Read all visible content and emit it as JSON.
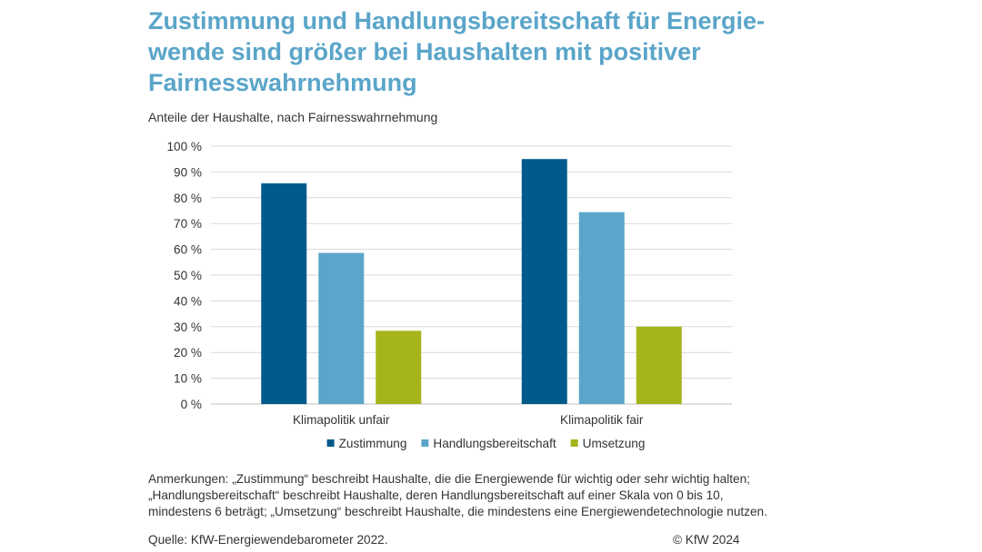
{
  "title_lines": [
    "Zustimmung und Handlungsbereitschaft für Energie-",
    "wende sind größer bei Haushalten mit positiver",
    "Fairnesswahrnehmung"
  ],
  "notes_lines": [
    "Anmerkungen: „Zustimmung“ beschreibt Haushalte, die die Energiewende für wichtig oder sehr wichtig halten;",
    "„Handlungsbereitschaft“ beschreibt Haushalte, deren Handlungsbereitschaft auf einer Skala von 0 bis 10,",
    "mindestens 6 beträgt; „Umsetzung“ beschreibt Haushalte, die mindestens eine Energiewendetechnologie nutzen."
  ],
  "source": "Quelle: KfW-Energiewendebarometer 2022.",
  "copyright": "© KfW 2024",
  "chart_data": {
    "type": "bar",
    "title": "",
    "subtitle": "Anteile der Haushalte, nach Fairnesswahrnehmung",
    "xlabel": "",
    "ylabel": "",
    "categories": [
      "Klimapolitik unfair",
      "Klimapolitik fair"
    ],
    "series": [
      {
        "name": "Zustimmung",
        "values": [
          85.6,
          95.0
        ],
        "color": "#005a8c"
      },
      {
        "name": "Handlungsbereitschaft",
        "values": [
          58.6,
          74.4
        ],
        "color": "#5aa5c9"
      },
      {
        "name": "Umsetzung",
        "values": [
          28.4,
          30.0
        ],
        "color": "#a5b41b"
      }
    ],
    "ylim": [
      0,
      100
    ],
    "yticks": [
      0,
      10,
      20,
      30,
      40,
      50,
      60,
      70,
      80,
      90,
      100
    ],
    "ytick_suffix": " %",
    "grid": true,
    "legend": "bottom"
  }
}
